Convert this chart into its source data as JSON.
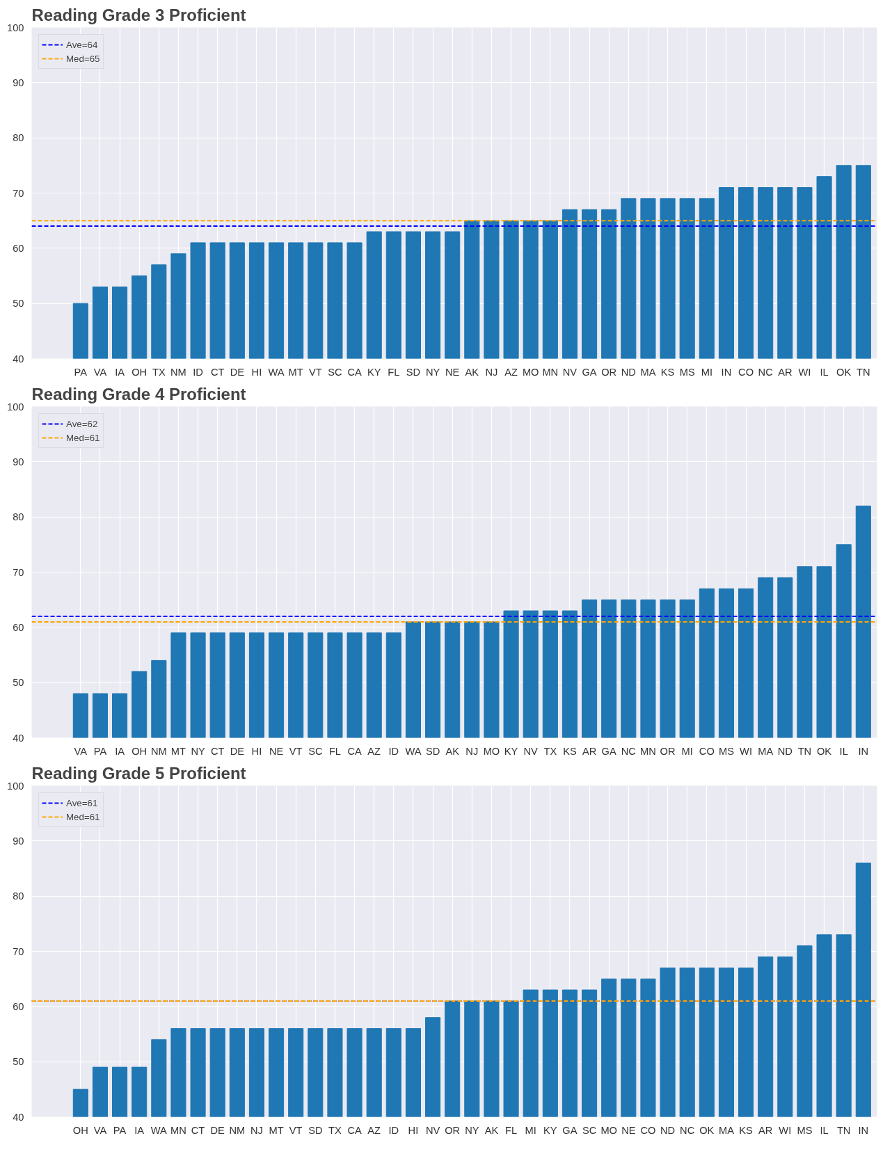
{
  "chart_data": [
    {
      "type": "bar",
      "title": "Reading Grade 3 Proficient",
      "categories": [
        "PA",
        "VA",
        "IA",
        "OH",
        "TX",
        "NM",
        "ID",
        "CT",
        "DE",
        "HI",
        "WA",
        "MT",
        "VT",
        "SC",
        "CA",
        "KY",
        "FL",
        "SD",
        "NY",
        "NE",
        "AK",
        "NJ",
        "AZ",
        "MO",
        "MN",
        "NV",
        "GA",
        "OR",
        "ND",
        "MA",
        "KS",
        "MS",
        "MI",
        "IN",
        "CO",
        "NC",
        "AR",
        "WI",
        "IL",
        "OK",
        "TN"
      ],
      "values": [
        50,
        53,
        53,
        55,
        57,
        59,
        61,
        61,
        61,
        61,
        61,
        61,
        61,
        61,
        61,
        63,
        63,
        63,
        63,
        63,
        65,
        65,
        65,
        65,
        65,
        67,
        67,
        67,
        69,
        69,
        69,
        69,
        69,
        71,
        71,
        71,
        71,
        71,
        73,
        75,
        75
      ],
      "color": "#1f77b4",
      "ylim": [
        40,
        100
      ],
      "yticks": [
        40,
        50,
        60,
        70,
        80,
        90,
        100
      ],
      "grid": true,
      "legend": "top left",
      "ref_lines": [
        {
          "axis": "y",
          "value": 64,
          "label": "Ave=64",
          "color": "#0000ff",
          "line_style": "dashed"
        },
        {
          "axis": "y",
          "value": 65,
          "label": "Med=65",
          "color": "#ffa500",
          "line_style": "dashed"
        }
      ]
    },
    {
      "type": "bar",
      "title": "Reading Grade 4 Proficient",
      "categories": [
        "VA",
        "PA",
        "IA",
        "OH",
        "NM",
        "MT",
        "NY",
        "CT",
        "DE",
        "HI",
        "NE",
        "VT",
        "SC",
        "FL",
        "CA",
        "AZ",
        "ID",
        "WA",
        "SD",
        "AK",
        "NJ",
        "MO",
        "KY",
        "NV",
        "TX",
        "KS",
        "AR",
        "GA",
        "NC",
        "MN",
        "OR",
        "MI",
        "CO",
        "MS",
        "WI",
        "MA",
        "ND",
        "TN",
        "OK",
        "IL",
        "IN"
      ],
      "values": [
        48,
        48,
        48,
        52,
        54,
        59,
        59,
        59,
        59,
        59,
        59,
        59,
        59,
        59,
        59,
        59,
        59,
        61,
        61,
        61,
        61,
        61,
        63,
        63,
        63,
        63,
        65,
        65,
        65,
        65,
        65,
        65,
        67,
        67,
        67,
        69,
        69,
        71,
        71,
        75,
        82
      ],
      "color": "#1f77b4",
      "ylim": [
        40,
        100
      ],
      "yticks": [
        40,
        50,
        60,
        70,
        80,
        90,
        100
      ],
      "grid": true,
      "legend": "top left",
      "ref_lines": [
        {
          "axis": "y",
          "value": 62,
          "label": "Ave=62",
          "color": "#0000ff",
          "line_style": "dashed"
        },
        {
          "axis": "y",
          "value": 61,
          "label": "Med=61",
          "color": "#ffa500",
          "line_style": "dashed"
        }
      ]
    },
    {
      "type": "bar",
      "title": "Reading Grade 5 Proficient",
      "categories": [
        "OH",
        "VA",
        "PA",
        "IA",
        "WA",
        "MN",
        "CT",
        "DE",
        "NM",
        "NJ",
        "MT",
        "VT",
        "SD",
        "TX",
        "CA",
        "AZ",
        "ID",
        "HI",
        "NV",
        "OR",
        "NY",
        "AK",
        "FL",
        "MI",
        "KY",
        "GA",
        "SC",
        "MO",
        "NE",
        "CO",
        "ND",
        "NC",
        "OK",
        "MA",
        "KS",
        "AR",
        "WI",
        "MS",
        "IL",
        "TN",
        "IN"
      ],
      "values": [
        45,
        49,
        49,
        49,
        54,
        56,
        56,
        56,
        56,
        56,
        56,
        56,
        56,
        56,
        56,
        56,
        56,
        56,
        58,
        61,
        61,
        61,
        61,
        63,
        63,
        63,
        63,
        65,
        65,
        65,
        67,
        67,
        67,
        67,
        67,
        69,
        69,
        71,
        73,
        73,
        86
      ],
      "color": "#1f77b4",
      "ylim": [
        40,
        100
      ],
      "yticks": [
        40,
        50,
        60,
        70,
        80,
        90,
        100
      ],
      "grid": true,
      "legend": "top left",
      "ref_lines": [
        {
          "axis": "y",
          "value": 61,
          "label": "Ave=61",
          "color": "#0000ff",
          "line_style": "dashed"
        },
        {
          "axis": "y",
          "value": 61,
          "label": "Med=61",
          "color": "#ffa500",
          "line_style": "dashed"
        }
      ]
    }
  ]
}
